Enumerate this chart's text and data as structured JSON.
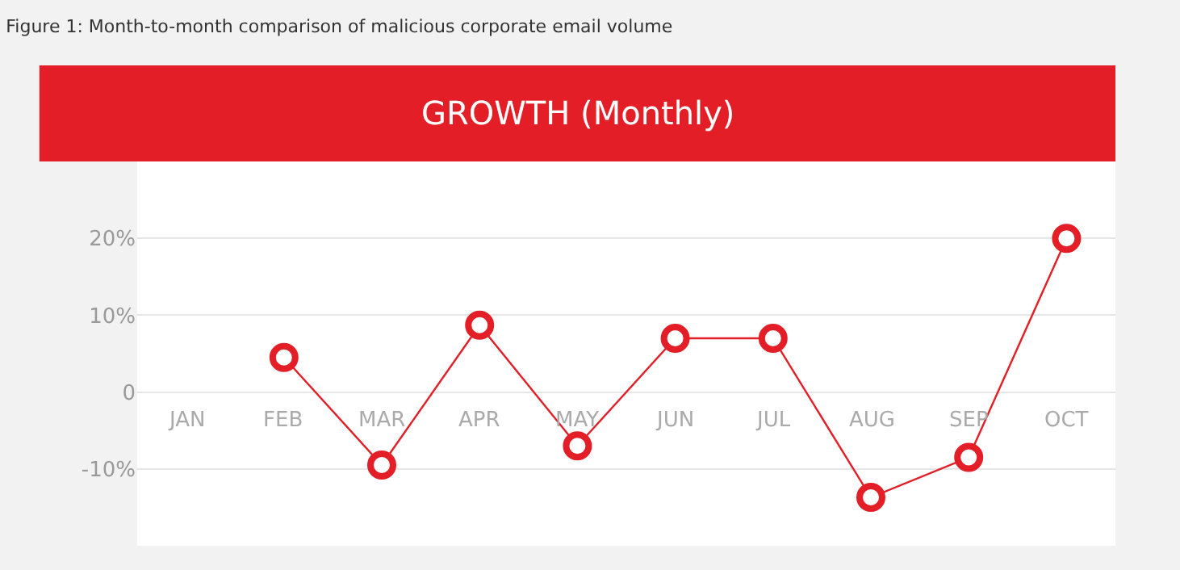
{
  "chart_data": {
    "type": "line",
    "title": "Figure 1: Month-to-month comparison of malicious corporate email volume",
    "subtitle": "GROWTH (Monthly)",
    "categories": [
      "JAN",
      "FEB",
      "MAR",
      "APR",
      "MAY",
      "JUN",
      "JUL",
      "AUG",
      "SEP",
      "OCT"
    ],
    "series": [
      {
        "color": "#e31e26",
        "values": [
          null,
          4.5,
          -9.5,
          8.7,
          -7,
          7,
          7,
          -13.7,
          -8.5,
          20
        ]
      }
    ],
    "ylim": [
      -20,
      30
    ],
    "yticks": [
      {
        "value": -10,
        "label": "-10%"
      },
      0,
      {
        "value": 10,
        "label": "10%"
      },
      {
        "value": 20,
        "label": "20%"
      }
    ],
    "grid": "y",
    "marker": "circle",
    "line_style": "solid"
  }
}
